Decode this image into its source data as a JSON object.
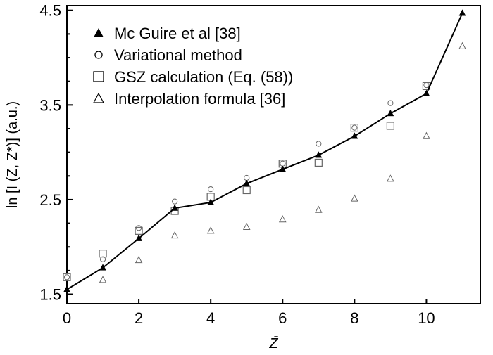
{
  "chart_data": {
    "type": "scatter",
    "title": "",
    "xlabel": "Z̄",
    "ylabel": "ln [I (Z, Z*)] (a.u.)",
    "xlim": [
      0,
      11.5
    ],
    "ylim": [
      1.4,
      4.55
    ],
    "xticks": [
      0,
      2,
      4,
      6,
      8,
      10
    ],
    "yticks": [
      1.5,
      2.5,
      3.5,
      4.5
    ],
    "xtick_labels": [
      "0",
      "2",
      "4",
      "6",
      "8",
      "10"
    ],
    "ytick_labels": [
      "1.5",
      "2.5",
      "3.5",
      "4.5"
    ],
    "grid": false,
    "legend_position": "top-left",
    "series": [
      {
        "name": "Mc Guire et al [38]",
        "marker": "filled-triangle",
        "line": true,
        "color": "#000000",
        "x": [
          0,
          1,
          2,
          3,
          4,
          5,
          6,
          7,
          8,
          9,
          10,
          11
        ],
        "y": [
          1.55,
          1.78,
          2.09,
          2.41,
          2.47,
          2.67,
          2.82,
          2.97,
          3.17,
          3.41,
          3.62,
          4.47
        ]
      },
      {
        "name": "Variational method",
        "marker": "open-circle",
        "line": false,
        "color": "#666666",
        "x": [
          0,
          1,
          2,
          3,
          4,
          5,
          6,
          7,
          8,
          9,
          10
        ],
        "y": [
          1.68,
          1.87,
          2.2,
          2.48,
          2.61,
          2.73,
          2.88,
          3.09,
          3.26,
          3.52,
          3.71
        ]
      },
      {
        "name": "GSZ calculation (Eq. (58))",
        "marker": "open-square",
        "line": false,
        "color": "#666666",
        "x": [
          0,
          1,
          2,
          3,
          4,
          5,
          6,
          7,
          8,
          9,
          10
        ],
        "y": [
          1.68,
          1.93,
          2.17,
          2.38,
          2.53,
          2.6,
          2.88,
          2.89,
          3.26,
          3.28,
          3.7
        ]
      },
      {
        "name": "Interpolation formula [36]",
        "marker": "open-triangle",
        "line": false,
        "color": "#666666",
        "x": [
          1,
          2,
          3,
          4,
          5,
          6,
          7,
          8,
          9,
          10,
          11
        ],
        "y": [
          1.65,
          1.86,
          2.12,
          2.17,
          2.21,
          2.29,
          2.39,
          2.51,
          2.72,
          3.17,
          4.12
        ]
      }
    ]
  }
}
